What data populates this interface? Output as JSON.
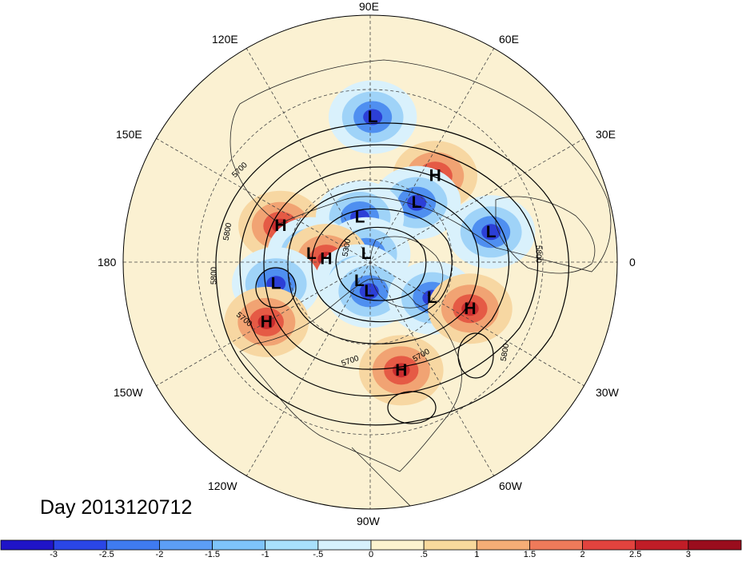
{
  "map": {
    "projection": "north polar stereographic",
    "longitude_labels": [
      "90E",
      "60E",
      "120E",
      "30E",
      "150E",
      "180",
      "0",
      "150W",
      "30W",
      "120W",
      "60W",
      "90W"
    ],
    "pressure_systems": [
      {
        "label": "L",
        "lon": 89,
        "lat": 20
      },
      {
        "label": "H",
        "lon": 53,
        "lat": 35
      },
      {
        "label": "L",
        "lon": 14,
        "lat": 28
      },
      {
        "label": "H",
        "lon": 158,
        "lat": 40
      },
      {
        "label": "L",
        "lon": 52,
        "lat": 50
      },
      {
        "label": "L",
        "lon": 103,
        "lat": 65
      },
      {
        "label": "L",
        "lon": 115,
        "lat": 85
      },
      {
        "label": "L",
        "lon": 172,
        "lat": 58
      },
      {
        "label": "H",
        "lon": 176,
        "lat": 66
      },
      {
        "label": "L",
        "lon": -167,
        "lat": 40
      },
      {
        "label": "H",
        "lon": -150,
        "lat": 30
      },
      {
        "label": "L",
        "lon": -120,
        "lat": 78
      },
      {
        "label": "L",
        "lon": -92,
        "lat": 74
      },
      {
        "label": "L",
        "lon": -30,
        "lat": 52
      },
      {
        "label": "H",
        "lon": -25,
        "lat": 34
      },
      {
        "label": "H",
        "lon": -74,
        "lat": 33
      }
    ],
    "height_contour_labels": [
      "5700",
      "5800",
      "5800",
      "5800",
      "5700",
      "5700",
      "5300",
      "5800",
      "5700"
    ]
  },
  "footer": {
    "day_label": "Day 2013120712"
  },
  "colorbar": {
    "tick_labels": [
      "-3",
      "-2.5",
      "-2",
      "-1.5",
      "-1",
      "-.5",
      "0",
      ".5",
      "1",
      "1.5",
      "2",
      "2.5",
      "3"
    ],
    "colors": [
      "#1f14c8",
      "#2a46e6",
      "#3f7bf0",
      "#5c9ef5",
      "#7ec4fa",
      "#a8e0fb",
      "#d6f1fc",
      "#fbf3cf",
      "#f8d99c",
      "#f5ad76",
      "#ef7a5a",
      "#e2433e",
      "#c01d27",
      "#9a0d1d"
    ]
  },
  "palette": {
    "blue_dark": "#2c3fd6",
    "blue_mid": "#4f8ff0",
    "blue_light": "#9fd3f8",
    "blue_pale": "#d9f1fc",
    "tan_pale": "#fbf1d2",
    "tan": "#f7d7a2",
    "orange": "#f1a373",
    "red": "#e55a45",
    "red_dark": "#c92c2e"
  }
}
